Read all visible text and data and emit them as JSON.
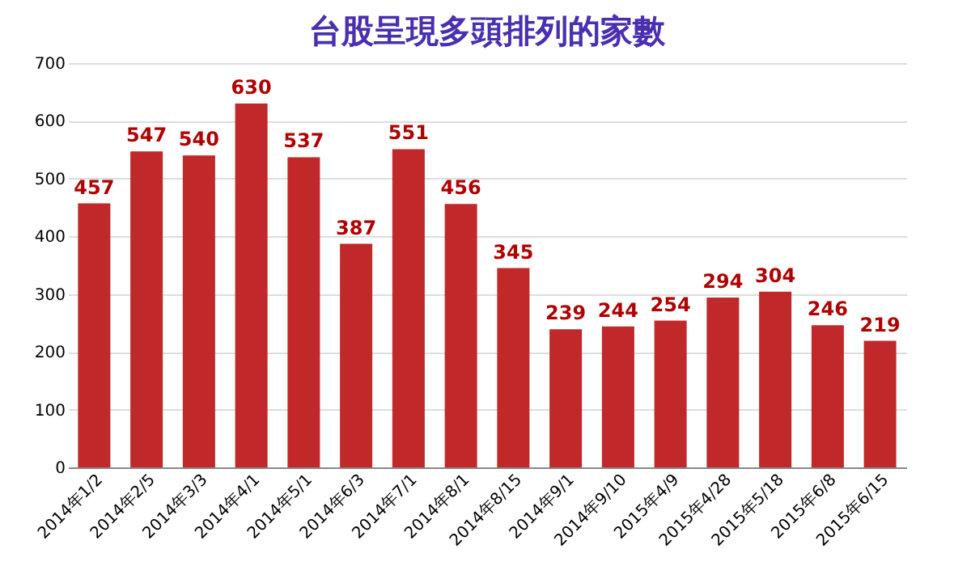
{
  "chart_data": {
    "type": "bar",
    "title": "台股呈現多頭排列的家數",
    "categories": [
      "2014年1/2",
      "2014年2/5",
      "2014年3/3",
      "2014年4/1",
      "2014年5/1",
      "2014年6/3",
      "2014年7/1",
      "2014年8/1",
      "2014年8/15",
      "2014年9/1",
      "2014年9/10",
      "2015年4/9",
      "2015年4/28",
      "2015年5/18",
      "2015年6/8",
      "2015年6/15"
    ],
    "values": [
      457,
      547,
      540,
      630,
      537,
      387,
      551,
      456,
      345,
      239,
      244,
      254,
      294,
      304,
      246,
      219
    ],
    "color": "#c0282a",
    "ylim": [
      0,
      700
    ],
    "yticks": [
      0,
      100,
      200,
      300,
      400,
      500,
      600,
      700
    ],
    "grid": "y",
    "data_labels": true
  }
}
